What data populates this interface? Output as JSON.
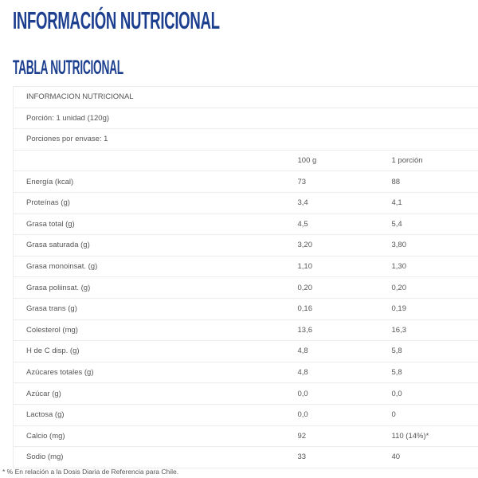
{
  "title": "INFORMACIÓN NUTRICIONAL",
  "section_title": "TABLA NUTRICIONAL",
  "table": {
    "info_rows": [
      "INFORMACION NUTRICIONAL",
      "Porción: 1 unidad (120g)",
      "Porciones por envase: 1"
    ],
    "headers": [
      "",
      "100 g",
      "1 porción"
    ],
    "rows": [
      [
        "Energía (kcal)",
        "73",
        "88"
      ],
      [
        "Proteínas (g)",
        "3,4",
        "4,1"
      ],
      [
        "Grasa total (g)",
        "4,5",
        "5,4"
      ],
      [
        "Grasa saturada (g)",
        "3,20",
        "3,80"
      ],
      [
        "Grasa monoinsat. (g)",
        "1,10",
        "1,30"
      ],
      [
        "Grasa poliinsat. (g)",
        "0,20",
        "0,20"
      ],
      [
        "Grasa trans (g)",
        "0,16",
        "0,19"
      ],
      [
        "Colesterol (mg)",
        "13,6",
        "16,3"
      ],
      [
        "H de C disp. (g)",
        "4,8",
        "5,8"
      ],
      [
        "Azúcares totales (g)",
        "4,8",
        "5,8"
      ],
      [
        "Azúcar (g)",
        "0,0",
        "0,0"
      ],
      [
        "Lactosa (g)",
        "0,0",
        "0"
      ],
      [
        "Calcio  (mg)",
        "92",
        "110 (14%)*"
      ],
      [
        "Sodio (mg)",
        "33",
        "40"
      ]
    ]
  },
  "footnote": "* % En relación a la Dosis Diaria de Referencia para Chile.",
  "colors": {
    "heading": "#1d3f8f",
    "text": "#555555",
    "border": "#ececec"
  }
}
